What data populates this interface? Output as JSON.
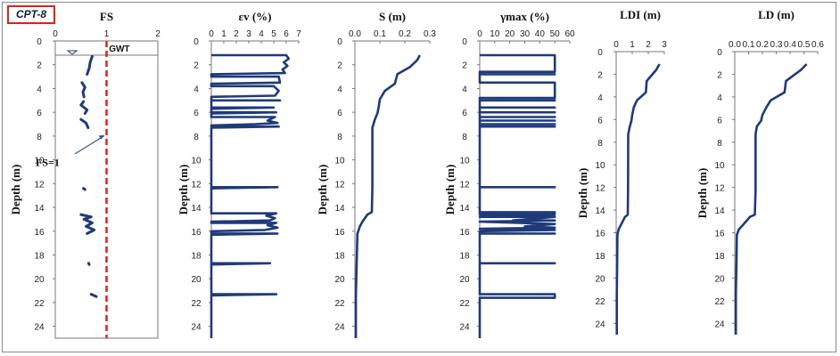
{
  "figure": {
    "badge": "CPT-8",
    "ylabel": "Depth (m)",
    "depth_ticks": [
      0,
      2,
      4,
      6,
      8,
      10,
      12,
      14,
      16,
      18,
      20,
      22,
      24
    ],
    "series_color": "#1f3a7a",
    "fs_line_color": "#e0201b"
  },
  "chart_data": [
    {
      "type": "line",
      "id": "fs",
      "title": "FS",
      "xlabel": "FS",
      "ylabel": "Depth (m)",
      "xlim": [
        0,
        2
      ],
      "ylim": [
        0,
        25
      ],
      "xticks": [
        0,
        1,
        2
      ],
      "reference_line": {
        "x": 1,
        "label": "FS=1"
      },
      "gwt": {
        "depth": 1.2,
        "label": "GWT"
      },
      "segments": [
        [
          [
            0.72,
            1.3
          ],
          [
            0.68,
            1.8
          ],
          [
            0.66,
            2.3
          ],
          [
            0.62,
            2.8
          ]
        ],
        [
          [
            0.52,
            3.5
          ],
          [
            0.58,
            3.9
          ],
          [
            0.54,
            4.3
          ],
          [
            0.56,
            4.7
          ]
        ],
        [
          [
            0.55,
            5.1
          ],
          [
            0.5,
            5.4
          ],
          [
            0.62,
            5.8
          ],
          [
            0.58,
            6.1
          ]
        ],
        [
          [
            0.5,
            6.6
          ],
          [
            0.6,
            6.9
          ],
          [
            0.64,
            7.3
          ]
        ],
        [
          [
            0.55,
            12.4
          ],
          [
            0.58,
            12.5
          ]
        ],
        [
          [
            0.5,
            14.6
          ],
          [
            0.7,
            14.8
          ],
          [
            0.56,
            15.0
          ],
          [
            0.72,
            15.3
          ],
          [
            0.6,
            15.6
          ],
          [
            0.76,
            15.9
          ],
          [
            0.62,
            16.2
          ]
        ],
        [
          [
            0.65,
            18.7
          ],
          [
            0.66,
            18.8
          ]
        ],
        [
          [
            0.7,
            21.3
          ],
          [
            0.8,
            21.5
          ]
        ]
      ]
    },
    {
      "type": "line",
      "id": "ev",
      "title": "εv (%)",
      "xlabel": "εv (%)",
      "ylabel": "Depth (m)",
      "xlim": [
        0,
        7
      ],
      "ylim": [
        0,
        25
      ],
      "xticks": [
        0,
        1,
        2,
        3,
        4,
        5,
        6,
        7
      ],
      "line": [
        [
          0,
          1.2
        ],
        [
          6,
          1.2
        ],
        [
          6.2,
          1.5
        ],
        [
          5.8,
          1.8
        ],
        [
          6.1,
          2.1
        ],
        [
          5.7,
          2.4
        ],
        [
          5.9,
          2.7
        ],
        [
          0,
          2.8
        ],
        [
          0,
          3.0
        ],
        [
          5.4,
          3.0
        ],
        [
          5.5,
          3.5
        ],
        [
          0,
          3.6
        ],
        [
          0,
          3.8
        ],
        [
          5,
          3.8
        ],
        [
          5.4,
          4.2
        ],
        [
          5.1,
          4.6
        ],
        [
          0,
          4.7
        ],
        [
          0,
          5.0
        ],
        [
          5.5,
          5.0
        ],
        [
          0,
          5.0
        ],
        [
          0,
          5.6
        ],
        [
          5,
          5.6
        ],
        [
          0,
          5.7
        ],
        [
          0,
          6.0
        ],
        [
          5.2,
          6.0
        ],
        [
          0,
          6.1
        ],
        [
          0,
          6.4
        ],
        [
          5.1,
          6.4
        ],
        [
          4.5,
          6.7
        ],
        [
          5.3,
          6.9
        ],
        [
          3.5,
          7.0
        ],
        [
          0,
          7.1
        ],
        [
          0,
          7.2
        ],
        [
          5.4,
          7.2
        ],
        [
          0,
          7.3
        ],
        [
          0,
          12.3
        ],
        [
          5.3,
          12.3
        ],
        [
          0,
          12.4
        ],
        [
          0,
          14.5
        ],
        [
          5.2,
          14.5
        ],
        [
          4.4,
          14.7
        ],
        [
          5.1,
          14.9
        ],
        [
          4.7,
          15.1
        ],
        [
          0,
          15.2
        ],
        [
          0,
          15.3
        ],
        [
          5.2,
          15.3
        ],
        [
          4.5,
          15.5
        ],
        [
          5.3,
          15.7
        ],
        [
          4.3,
          15.9
        ],
        [
          0,
          16.0
        ],
        [
          0,
          16.2
        ],
        [
          5.3,
          16.2
        ],
        [
          0,
          16.3
        ],
        [
          0,
          18.7
        ],
        [
          4.7,
          18.7
        ],
        [
          0,
          18.8
        ],
        [
          0,
          21.3
        ],
        [
          5.2,
          21.3
        ],
        [
          0,
          21.4
        ],
        [
          0,
          25
        ]
      ]
    },
    {
      "type": "line",
      "id": "s",
      "title": "S (m)",
      "xlabel": "S (m)",
      "ylabel": "Depth (m)",
      "xlim": [
        0,
        0.3
      ],
      "ylim": [
        0,
        25
      ],
      "xticks": [
        0,
        0.1,
        0.2,
        0.3
      ],
      "tick_labels": [
        "0.0",
        "0.1",
        "0.2",
        "0.3"
      ],
      "line": [
        [
          0.26,
          1.2
        ],
        [
          0.25,
          1.6
        ],
        [
          0.22,
          2.2
        ],
        [
          0.17,
          2.8
        ],
        [
          0.16,
          3.6
        ],
        [
          0.12,
          4.2
        ],
        [
          0.1,
          4.9
        ],
        [
          0.095,
          5.6
        ],
        [
          0.09,
          6.1
        ],
        [
          0.08,
          6.6
        ],
        [
          0.07,
          7.3
        ],
        [
          0.07,
          12.3
        ],
        [
          0.068,
          14.4
        ],
        [
          0.05,
          14.6
        ],
        [
          0.03,
          15.2
        ],
        [
          0.02,
          15.6
        ],
        [
          0.01,
          16.2
        ],
        [
          0.007,
          18.7
        ],
        [
          0.004,
          21.4
        ],
        [
          0.004,
          25
        ]
      ]
    },
    {
      "type": "line",
      "id": "gmax",
      "title": "γmax (%)",
      "xlabel": "γmax (%)",
      "ylabel": "Depth (m)",
      "xlim": [
        0,
        60
      ],
      "ylim": [
        0,
        25
      ],
      "xticks": [
        0,
        10,
        20,
        30,
        40,
        50,
        60
      ],
      "line": [
        [
          0,
          1.2
        ],
        [
          50,
          1.2
        ],
        [
          50,
          2.6
        ],
        [
          0,
          2.6
        ],
        [
          0,
          2.8
        ],
        [
          50,
          2.8
        ],
        [
          0,
          2.8
        ],
        [
          0,
          3.5
        ],
        [
          50,
          3.5
        ],
        [
          50,
          4.8
        ],
        [
          0,
          4.8
        ],
        [
          0,
          5.0
        ],
        [
          50,
          5.0
        ],
        [
          0,
          5.0
        ],
        [
          0,
          5.6
        ],
        [
          50,
          5.6
        ],
        [
          0,
          5.6
        ],
        [
          0,
          6.0
        ],
        [
          50,
          6.0
        ],
        [
          0,
          6.0
        ],
        [
          0,
          6.4
        ],
        [
          50,
          6.4
        ],
        [
          0,
          6.4
        ],
        [
          0,
          6.7
        ],
        [
          50,
          6.7
        ],
        [
          0,
          6.7
        ],
        [
          0,
          7.0
        ],
        [
          50,
          7.0
        ],
        [
          0,
          7.0
        ],
        [
          0,
          7.2
        ],
        [
          50,
          7.2
        ],
        [
          0,
          7.2
        ],
        [
          0,
          12.3
        ],
        [
          50,
          12.3
        ],
        [
          0,
          12.3
        ],
        [
          0,
          14.4
        ],
        [
          50,
          14.4
        ],
        [
          0,
          14.4
        ],
        [
          0,
          14.6
        ],
        [
          50,
          14.6
        ],
        [
          0,
          14.8
        ],
        [
          50,
          14.8
        ],
        [
          22,
          15.1
        ],
        [
          50,
          15.1
        ],
        [
          0,
          15.2
        ],
        [
          50,
          15.4
        ],
        [
          30,
          15.6
        ],
        [
          50,
          15.7
        ],
        [
          0,
          15.8
        ],
        [
          50,
          15.9
        ],
        [
          0,
          16.0
        ],
        [
          0,
          16.2
        ],
        [
          50,
          16.2
        ],
        [
          0,
          16.2
        ],
        [
          0,
          18.7
        ],
        [
          50,
          18.7
        ],
        [
          0,
          18.7
        ],
        [
          0,
          21.3
        ],
        [
          50,
          21.3
        ],
        [
          50,
          21.6
        ],
        [
          0,
          21.6
        ],
        [
          0,
          25
        ]
      ]
    },
    {
      "type": "line",
      "id": "ldi",
      "title": "LDI (m)",
      "xlabel": "LDI (m)",
      "ylabel": "Depth (m)",
      "xlim": [
        0,
        3
      ],
      "ylim": [
        0,
        25
      ],
      "xticks": [
        0,
        1,
        2,
        3
      ],
      "line": [
        [
          2.7,
          1.1
        ],
        [
          2.5,
          1.6
        ],
        [
          1.9,
          2.6
        ],
        [
          1.85,
          3.6
        ],
        [
          1.3,
          4.3
        ],
        [
          1.1,
          4.9
        ],
        [
          1.0,
          5.6
        ],
        [
          0.95,
          6.1
        ],
        [
          0.85,
          6.6
        ],
        [
          0.75,
          7.3
        ],
        [
          0.74,
          12.3
        ],
        [
          0.72,
          14.4
        ],
        [
          0.55,
          14.6
        ],
        [
          0.3,
          15.3
        ],
        [
          0.15,
          15.7
        ],
        [
          0.08,
          16.2
        ],
        [
          0.06,
          18.7
        ],
        [
          0.04,
          21.4
        ],
        [
          0.04,
          25
        ]
      ]
    },
    {
      "type": "line",
      "id": "ld",
      "title": "LD (m)",
      "xlabel": "LD (m)",
      "ylabel": "Depth (m)",
      "xlim": [
        0,
        0.6
      ],
      "ylim": [
        0,
        25
      ],
      "xticks": [
        0,
        0.1,
        0.2,
        0.3,
        0.4,
        0.5,
        0.6
      ],
      "tick_labels": [
        "0.0",
        "0.1",
        "0.2",
        "0.3",
        "0.4",
        "0.5",
        "0.6"
      ],
      "line": [
        [
          0.52,
          1.1
        ],
        [
          0.48,
          1.6
        ],
        [
          0.37,
          2.6
        ],
        [
          0.36,
          3.6
        ],
        [
          0.26,
          4.3
        ],
        [
          0.23,
          4.9
        ],
        [
          0.2,
          5.6
        ],
        [
          0.19,
          6.1
        ],
        [
          0.16,
          6.6
        ],
        [
          0.15,
          7.3
        ],
        [
          0.15,
          12.3
        ],
        [
          0.145,
          14.4
        ],
        [
          0.11,
          14.6
        ],
        [
          0.06,
          15.3
        ],
        [
          0.03,
          15.7
        ],
        [
          0.015,
          16.2
        ],
        [
          0.012,
          18.7
        ],
        [
          0.008,
          21.4
        ],
        [
          0.008,
          25
        ]
      ]
    }
  ]
}
